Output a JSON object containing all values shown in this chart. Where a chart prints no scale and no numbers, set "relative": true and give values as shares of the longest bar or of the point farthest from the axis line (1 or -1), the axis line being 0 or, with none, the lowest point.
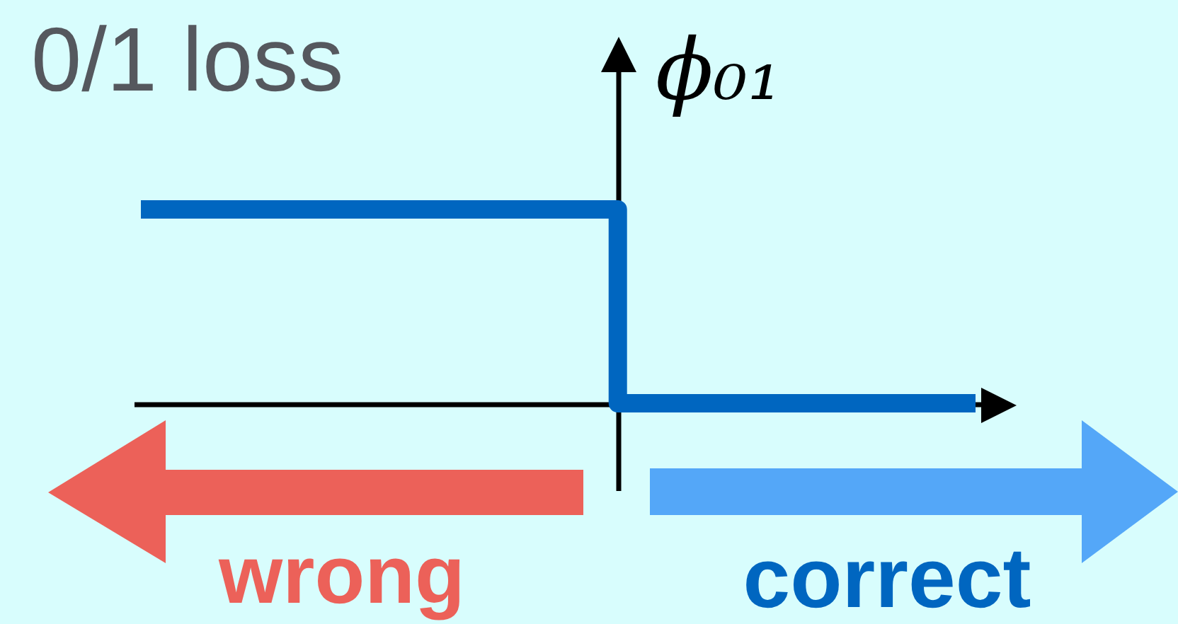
{
  "chart_data": {
    "type": "step",
    "title": "0/1 loss",
    "ylabel": "ϕ₀₁",
    "relative": true,
    "categories": [
      null,
      null,
      null,
      null,
      null,
      null,
      null,
      null
    ],
    "series": [
      {
        "color": "#0066c0",
        "values": [
          1,
          1,
          1,
          1,
          0,
          0,
          0,
          0
        ]
      }
    ],
    "annotations": [
      "wrong",
      "correct"
    ]
  }
}
